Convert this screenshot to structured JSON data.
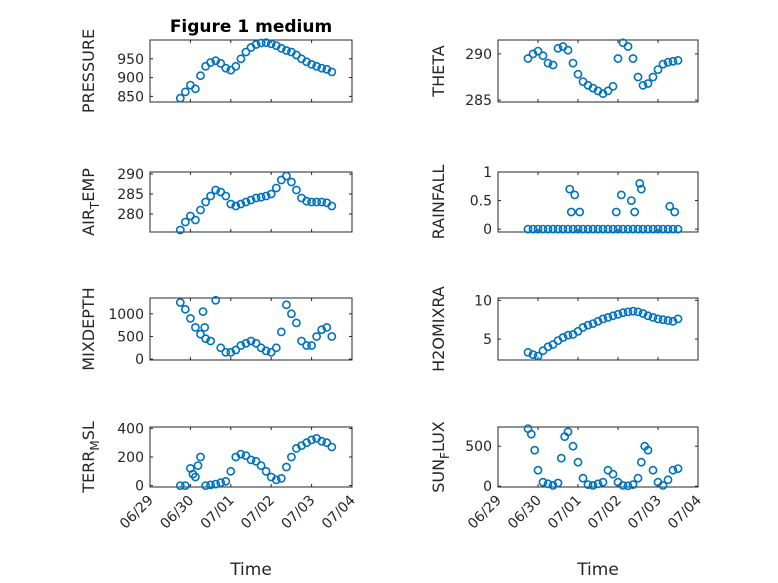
{
  "chart_data": [
    {
      "type": "scatter",
      "title": "Figure 1 medium",
      "ylabel": "PRESSURE",
      "xlabel": "",
      "xlim": [
        "06/29",
        "07/04"
      ],
      "ylim": [
        835,
        1000
      ],
      "yticks": [
        850,
        900,
        950
      ],
      "xticks": [
        "06/29",
        "06/30",
        "07/01",
        "07/02",
        "07/03",
        "07/04"
      ],
      "grid": true,
      "x": [
        "06/29 18:00",
        "06/29 21:00",
        "06/30 00:00",
        "06/30 03:00",
        "06/30 06:00",
        "06/30 09:00",
        "06/30 12:00",
        "06/30 15:00",
        "06/30 18:00",
        "06/30 21:00",
        "07/01 00:00",
        "07/01 03:00",
        "07/01 06:00",
        "07/01 09:00",
        "07/01 12:00",
        "07/01 15:00",
        "07/01 18:00",
        "07/01 21:00",
        "07/02 00:00",
        "07/02 03:00",
        "07/02 06:00",
        "07/02 09:00",
        "07/02 12:00",
        "07/02 15:00",
        "07/02 18:00",
        "07/02 21:00",
        "07/03 00:00",
        "07/03 03:00",
        "07/03 06:00",
        "07/03 09:00",
        "07/03 12:00"
      ],
      "y": [
        845,
        862,
        880,
        870,
        905,
        930,
        940,
        945,
        938,
        925,
        920,
        930,
        950,
        968,
        980,
        988,
        992,
        993,
        990,
        985,
        978,
        972,
        968,
        960,
        950,
        942,
        935,
        930,
        925,
        922,
        915
      ]
    },
    {
      "type": "scatter",
      "title": "",
      "ylabel": "THETA",
      "xlabel": "",
      "xlim": [
        "06/29",
        "07/04"
      ],
      "ylim": [
        284.8,
        291.5
      ],
      "yticks": [
        285,
        290
      ],
      "xticks": [
        "06/29",
        "06/30",
        "07/01",
        "07/02",
        "07/03",
        "07/04"
      ],
      "grid": true,
      "x": [
        "06/29 18:00",
        "06/29 21:00",
        "06/30 00:00",
        "06/30 03:00",
        "06/30 06:00",
        "06/30 09:00",
        "06/30 12:00",
        "06/30 15:00",
        "06/30 18:00",
        "06/30 21:00",
        "07/01 00:00",
        "07/01 03:00",
        "07/01 06:00",
        "07/01 09:00",
        "07/01 12:00",
        "07/01 15:00",
        "07/01 18:00",
        "07/01 21:00",
        "07/02 00:00",
        "07/02 03:00",
        "07/02 06:00",
        "07/02 09:00",
        "07/02 12:00",
        "07/02 15:00",
        "07/02 18:00",
        "07/02 21:00",
        "07/03 00:00",
        "07/03 03:00",
        "07/03 06:00",
        "07/03 09:00",
        "07/03 12:00"
      ],
      "y": [
        289.5,
        290.0,
        290.3,
        289.8,
        289.0,
        288.8,
        290.6,
        290.8,
        290.4,
        289.0,
        287.8,
        287.0,
        286.6,
        286.3,
        286.0,
        285.7,
        286.0,
        286.5,
        289.5,
        291.2,
        290.8,
        289.5,
        287.5,
        286.6,
        286.8,
        287.5,
        288.3,
        288.9,
        289.1,
        289.2,
        289.3
      ]
    },
    {
      "type": "scatter",
      "title": "",
      "ylabel": "AIR_TEMP",
      "ylabel_main": "AIR",
      "ylabel_sub": "T",
      "ylabel_rest": "EMP",
      "xlabel": "",
      "xlim": [
        "06/29",
        "07/04"
      ],
      "ylim": [
        275.5,
        290.5
      ],
      "yticks": [
        280,
        285,
        290
      ],
      "xticks": [
        "06/29",
        "06/30",
        "07/01",
        "07/02",
        "07/03",
        "07/04"
      ],
      "grid": true,
      "x": [
        "06/29 18:00",
        "06/29 21:00",
        "06/30 00:00",
        "06/30 03:00",
        "06/30 06:00",
        "06/30 09:00",
        "06/30 12:00",
        "06/30 15:00",
        "06/30 18:00",
        "06/30 21:00",
        "07/01 00:00",
        "07/01 03:00",
        "07/01 06:00",
        "07/01 09:00",
        "07/01 12:00",
        "07/01 15:00",
        "07/01 18:00",
        "07/01 21:00",
        "07/02 00:00",
        "07/02 03:00",
        "07/02 06:00",
        "07/02 09:00",
        "07/02 12:00",
        "07/02 15:00",
        "07/02 18:00",
        "07/02 21:00",
        "07/03 00:00",
        "07/03 03:00",
        "07/03 06:00",
        "07/03 09:00",
        "07/03 12:00"
      ],
      "y": [
        276.0,
        278.0,
        279.5,
        278.5,
        281.0,
        283.0,
        284.5,
        286.0,
        285.5,
        284.5,
        282.5,
        282.0,
        282.5,
        283.0,
        283.5,
        284.0,
        284.2,
        284.5,
        285.0,
        286.5,
        288.5,
        289.5,
        288.0,
        286.0,
        284.0,
        283.2,
        283.0,
        283.0,
        283.0,
        282.8,
        282.0
      ]
    },
    {
      "type": "scatter",
      "title": "",
      "ylabel": "RAINFALL",
      "xlabel": "",
      "xlim": [
        "06/29",
        "07/04"
      ],
      "ylim": [
        -0.05,
        1.0
      ],
      "yticks": [
        0,
        0.5,
        1
      ],
      "ytick_labels": [
        "0",
        "0.5",
        "1"
      ],
      "xticks": [
        "06/29",
        "06/30",
        "07/01",
        "07/02",
        "07/03",
        "07/04"
      ],
      "grid": true,
      "x": [
        "06/29 18:00",
        "06/29 21:00",
        "06/30 00:00",
        "06/30 03:00",
        "06/30 06:00",
        "06/30 09:00",
        "06/30 12:00",
        "06/30 15:00",
        "06/30 18:00",
        "06/30 21:00",
        "07/01 00:00",
        "07/01 03:00",
        "07/01 06:00",
        "07/01 09:00",
        "07/01 12:00",
        "07/01 15:00",
        "07/01 18:00",
        "07/01 21:00",
        "07/02 00:00",
        "07/02 03:00",
        "07/02 06:00",
        "07/02 09:00",
        "07/02 12:00",
        "07/02 15:00",
        "07/02 18:00",
        "07/02 21:00",
        "07/03 00:00",
        "07/03 03:00",
        "07/03 06:00",
        "07/03 09:00",
        "07/03 12:00",
        "06/30 19:00",
        "06/30 20:00",
        "06/30 22:00",
        "07/01 01:00",
        "07/01 23:00",
        "07/02 02:00",
        "07/02 08:00",
        "07/02 10:00",
        "07/02 13:00",
        "07/02 14:00",
        "07/03 07:00",
        "07/03 10:00"
      ],
      "y": [
        0,
        0,
        0,
        0,
        0,
        0,
        0,
        0,
        0,
        0,
        0,
        0,
        0,
        0,
        0,
        0,
        0,
        0,
        0,
        0,
        0,
        0,
        0,
        0,
        0,
        0,
        0,
        0,
        0,
        0,
        0,
        0.7,
        0.3,
        0.6,
        0.3,
        0.3,
        0.6,
        0.5,
        0.3,
        0.8,
        0.7,
        0.4,
        0.3
      ]
    },
    {
      "type": "scatter",
      "title": "",
      "ylabel": "MIXDEPTH",
      "xlabel": "",
      "xlim": [
        "06/29",
        "07/04"
      ],
      "ylim": [
        -20,
        1350
      ],
      "yticks": [
        0,
        500,
        1000
      ],
      "xticks": [
        "06/29",
        "06/30",
        "07/01",
        "07/02",
        "07/03",
        "07/04"
      ],
      "grid": true,
      "x": [
        "06/29 18:00",
        "06/29 21:00",
        "06/30 00:00",
        "06/30 03:00",
        "06/30 06:00",
        "06/30 09:00",
        "06/30 12:00",
        "06/30 15:00",
        "06/30 18:00",
        "06/30 21:00",
        "07/01 00:00",
        "07/01 03:00",
        "07/01 06:00",
        "07/01 09:00",
        "07/01 12:00",
        "07/01 15:00",
        "07/01 18:00",
        "07/01 21:00",
        "07/02 00:00",
        "07/02 03:00",
        "07/02 06:00",
        "07/02 09:00",
        "07/02 12:00",
        "07/02 15:00",
        "07/02 18:00",
        "07/02 21:00",
        "07/03 00:00",
        "07/03 03:00",
        "07/03 06:00",
        "07/03 09:00",
        "07/03 12:00",
        "06/30 07:30",
        "06/30 08:30"
      ],
      "y": [
        1250,
        1100,
        900,
        700,
        550,
        450,
        400,
        1300,
        250,
        150,
        150,
        200,
        300,
        350,
        400,
        350,
        250,
        180,
        150,
        250,
        600,
        1200,
        1000,
        800,
        400,
        300,
        300,
        500,
        650,
        700,
        500,
        1050,
        700
      ]
    },
    {
      "type": "scatter",
      "title": "",
      "ylabel": "H2OMIXRA",
      "xlabel": "",
      "xlim": [
        "06/29",
        "07/04"
      ],
      "ylim": [
        2.3,
        10.3
      ],
      "yticks": [
        5,
        10
      ],
      "xticks": [
        "06/29",
        "06/30",
        "07/01",
        "07/02",
        "07/03",
        "07/04"
      ],
      "grid": true,
      "x": [
        "06/29 18:00",
        "06/29 21:00",
        "06/30 00:00",
        "06/30 03:00",
        "06/30 06:00",
        "06/30 09:00",
        "06/30 12:00",
        "06/30 15:00",
        "06/30 18:00",
        "06/30 21:00",
        "07/01 00:00",
        "07/01 03:00",
        "07/01 06:00",
        "07/01 09:00",
        "07/01 12:00",
        "07/01 15:00",
        "07/01 18:00",
        "07/01 21:00",
        "07/02 00:00",
        "07/02 03:00",
        "07/02 06:00",
        "07/02 09:00",
        "07/02 12:00",
        "07/02 15:00",
        "07/02 18:00",
        "07/02 21:00",
        "07/03 00:00",
        "07/03 03:00",
        "07/03 06:00",
        "07/03 09:00",
        "07/03 12:00"
      ],
      "y": [
        3.3,
        3.0,
        2.8,
        3.5,
        4.0,
        4.3,
        4.8,
        5.2,
        5.5,
        5.6,
        6.0,
        6.5,
        6.8,
        7.0,
        7.3,
        7.6,
        7.8,
        8.0,
        8.2,
        8.4,
        8.5,
        8.6,
        8.5,
        8.3,
        8.0,
        7.8,
        7.6,
        7.5,
        7.4,
        7.3,
        7.6
      ]
    },
    {
      "type": "scatter",
      "title": "",
      "ylabel": "TERR_MSL",
      "ylabel_main": "TERR",
      "ylabel_sub": "M",
      "ylabel_rest": "SL",
      "xlabel": "Time",
      "xlim": [
        "06/29",
        "07/04"
      ],
      "ylim": [
        -10,
        410
      ],
      "yticks": [
        0,
        200,
        400
      ],
      "xticks": [
        "06/29",
        "06/30",
        "07/01",
        "07/02",
        "07/03",
        "07/04"
      ],
      "grid": true,
      "x": [
        "06/29 18:00",
        "06/29 21:00",
        "06/30 00:00",
        "06/30 03:00",
        "06/30 06:00",
        "06/30 09:00",
        "06/30 12:00",
        "06/30 15:00",
        "06/30 18:00",
        "06/30 21:00",
        "07/01 00:00",
        "07/01 03:00",
        "07/01 06:00",
        "07/01 09:00",
        "07/01 12:00",
        "07/01 15:00",
        "07/01 18:00",
        "07/01 21:00",
        "07/02 00:00",
        "07/02 03:00",
        "07/02 06:00",
        "07/02 09:00",
        "07/02 12:00",
        "07/02 15:00",
        "07/02 18:00",
        "07/02 21:00",
        "07/03 00:00",
        "07/03 03:00",
        "07/03 06:00",
        "07/03 09:00",
        "07/03 12:00",
        "06/30 01:30",
        "06/30 04:30"
      ],
      "y": [
        0,
        0,
        120,
        60,
        200,
        0,
        5,
        10,
        20,
        30,
        100,
        200,
        220,
        210,
        180,
        170,
        140,
        100,
        60,
        40,
        50,
        130,
        200,
        260,
        280,
        300,
        320,
        330,
        310,
        300,
        270,
        80,
        140
      ]
    },
    {
      "type": "scatter",
      "title": "",
      "ylabel": "SUN_FLUX",
      "ylabel_main": "SUN",
      "ylabel_sub": "F",
      "ylabel_rest": "LUX",
      "xlabel": "Time",
      "xlim": [
        "06/29",
        "07/04"
      ],
      "ylim": [
        -10,
        740
      ],
      "yticks": [
        0,
        500
      ],
      "xticks": [
        "06/29",
        "06/30",
        "07/01",
        "07/02",
        "07/03",
        "07/04"
      ],
      "grid": true,
      "x": [
        "06/29 18:00",
        "06/29 20:00",
        "06/29 22:00",
        "06/30 00:00",
        "06/30 03:00",
        "06/30 06:00",
        "06/30 09:00",
        "06/30 12:00",
        "06/30 14:00",
        "06/30 16:00",
        "06/30 18:00",
        "06/30 21:00",
        "07/01 00:00",
        "07/01 03:00",
        "07/01 06:00",
        "07/01 09:00",
        "07/01 12:00",
        "07/01 15:00",
        "07/01 18:00",
        "07/01 21:00",
        "07/02 00:00",
        "07/02 03:00",
        "07/02 06:00",
        "07/02 09:00",
        "07/02 12:00",
        "07/02 14:00",
        "07/02 16:00",
        "07/02 18:00",
        "07/02 21:00",
        "07/03 00:00",
        "07/03 03:00",
        "07/03 06:00",
        "07/03 09:00",
        "07/03 12:00"
      ],
      "y": [
        720,
        650,
        450,
        200,
        50,
        30,
        10,
        40,
        350,
        620,
        680,
        500,
        300,
        100,
        20,
        10,
        30,
        50,
        200,
        150,
        50,
        10,
        5,
        20,
        100,
        300,
        500,
        450,
        200,
        50,
        10,
        80,
        200,
        220
      ]
    }
  ]
}
